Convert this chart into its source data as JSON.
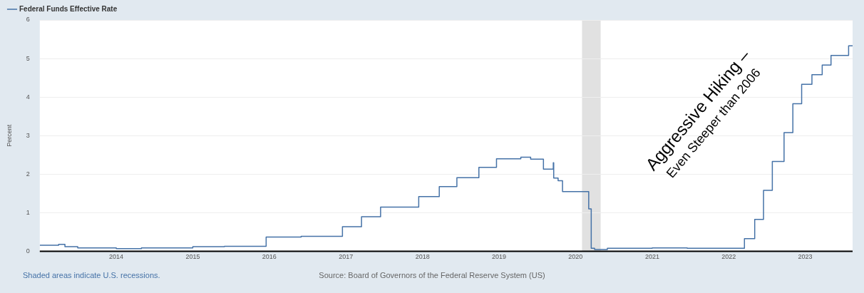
{
  "chart_data": {
    "type": "step",
    "ylabel": "Percent",
    "legend": "top left",
    "grid": "y",
    "marker": "none",
    "line_style": "solid",
    "xlim": [
      "2013-01-01",
      "2023-08-15"
    ],
    "ylim": [
      0,
      6
    ],
    "yticks": [
      0,
      1,
      2,
      3,
      4,
      5,
      6
    ],
    "xticks": [
      {
        "value": "2014-01-01",
        "label": "2014"
      },
      {
        "value": "2015-01-01",
        "label": "2015"
      },
      {
        "value": "2016-01-01",
        "label": "2016"
      },
      {
        "value": "2017-01-01",
        "label": "2017"
      },
      {
        "value": "2018-01-01",
        "label": "2018"
      },
      {
        "value": "2019-01-01",
        "label": "2019"
      },
      {
        "value": "2020-01-01",
        "label": "2020"
      },
      {
        "value": "2021-01-01",
        "label": "2021"
      },
      {
        "value": "2022-01-01",
        "label": "2022"
      },
      {
        "value": "2023-01-01",
        "label": "2023"
      }
    ],
    "bands": [
      {
        "axis": "x",
        "from": "2020-02-01",
        "to": "2020-04-30",
        "color": "#e1e1e1"
      }
    ],
    "annotations": [
      "Aggressive Hiking –\nEven Steeper than 2006",
      "Shaded areas indicate U.S. recessions.",
      "Source: Board of Governors of the Federal Reserve System (US)"
    ],
    "series": [
      {
        "name": "Federal Funds Effective Rate",
        "color": "#4572a7",
        "x": [
          "2013-01-01",
          "2013-04-01",
          "2013-05-01",
          "2013-07-01",
          "2014-01-01",
          "2014-05-01",
          "2015-01-01",
          "2015-06-01",
          "2015-12-17",
          "2016-06-01",
          "2016-12-15",
          "2017-03-16",
          "2017-06-15",
          "2017-12-14",
          "2018-03-22",
          "2018-06-14",
          "2018-09-27",
          "2018-12-20",
          "2019-04-15",
          "2019-06-01",
          "2019-08-01",
          "2019-09-17",
          "2019-09-19",
          "2019-10-10",
          "2019-10-31",
          "2020-03-04",
          "2020-03-16",
          "2020-04-01",
          "2020-06-01",
          "2021-01-01",
          "2021-06-17",
          "2021-09-01",
          "2022-03-17",
          "2022-05-05",
          "2022-06-16",
          "2022-07-28",
          "2022-09-22",
          "2022-11-03",
          "2022-12-15",
          "2023-02-02",
          "2023-03-23",
          "2023-05-04",
          "2023-07-27",
          "2023-08-15"
        ],
        "values": [
          0.16,
          0.18,
          0.12,
          0.09,
          0.07,
          0.09,
          0.12,
          0.13,
          0.37,
          0.39,
          0.64,
          0.9,
          1.15,
          1.42,
          1.68,
          1.91,
          2.18,
          2.4,
          2.44,
          2.39,
          2.13,
          2.3,
          1.9,
          1.83,
          1.55,
          1.1,
          0.08,
          0.05,
          0.08,
          0.09,
          0.08,
          0.08,
          0.33,
          0.83,
          1.58,
          2.33,
          3.08,
          3.83,
          4.33,
          4.58,
          4.83,
          5.08,
          5.33,
          5.33
        ]
      }
    ]
  }
}
